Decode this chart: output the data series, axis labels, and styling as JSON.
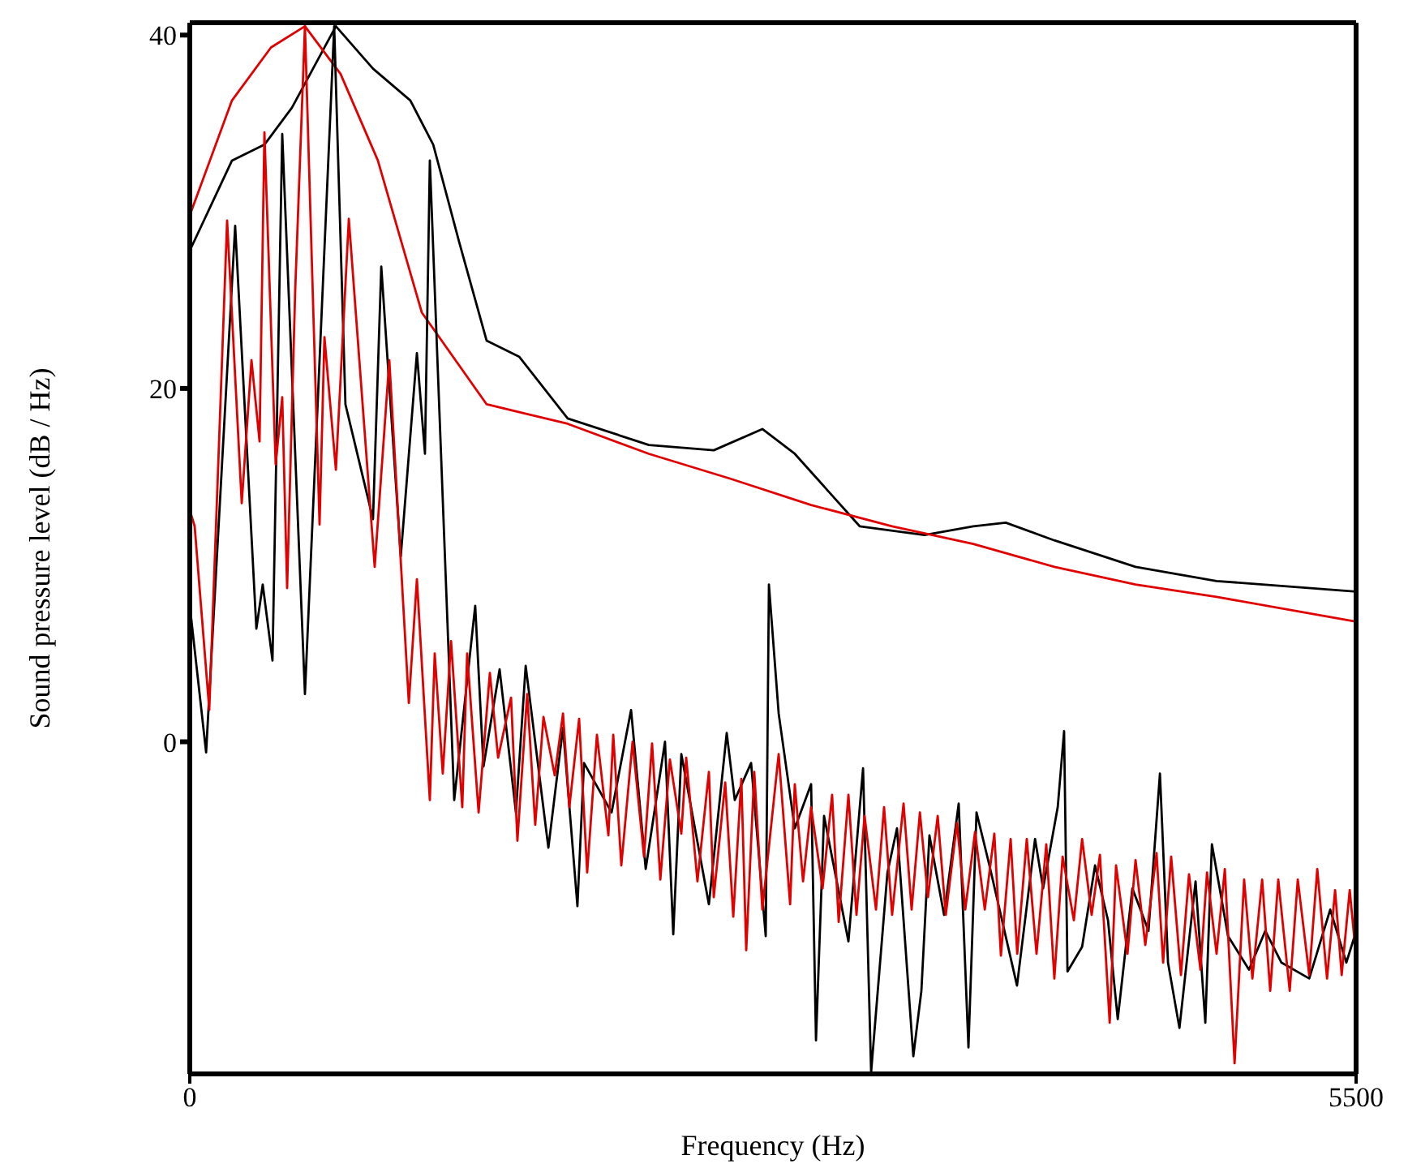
{
  "chart_data": {
    "type": "line",
    "xlabel": "Frequency (Hz)",
    "ylabel": "Sound pressure level (dB / Hz)",
    "xlim": [
      0,
      5500
    ],
    "xticks": [
      0,
      5500
    ],
    "ylim": [
      -18.8,
      40.7
    ],
    "yticks": [
      0,
      20,
      40
    ],
    "grid": false,
    "legend": false,
    "marker": "none",
    "line_style": "solid",
    "series": [
      {
        "color": "#000000",
        "x": [
          0,
          199,
          352,
          482,
          689,
          864,
          1040,
          1148,
          1270,
          1400,
          1553,
          1782,
          2165,
          2471,
          2700,
          2853,
          3159,
          3465,
          3695,
          3848,
          4077,
          4460,
          4842,
          5500
        ],
        "values": [
          27.8,
          32.9,
          33.8,
          35.9,
          40.5,
          38.1,
          36.3,
          33.8,
          28.3,
          22.7,
          21.8,
          18.3,
          16.8,
          16.5,
          17.7,
          16.3,
          12.2,
          11.7,
          12.2,
          12.4,
          11.4,
          9.9,
          9.1,
          8.5
        ]
      },
      {
        "color": "#e00000",
        "x": [
          0,
          199,
          383,
          543,
          711,
          887,
          1094,
          1400,
          1782,
          2165,
          2547,
          2930,
          3312,
          3695,
          4077,
          4460,
          4842,
          5500
        ],
        "values": [
          29.8,
          36.3,
          39.3,
          40.5,
          37.8,
          32.9,
          24.3,
          19.1,
          18.0,
          16.3,
          14.9,
          13.4,
          12.2,
          11.2,
          9.9,
          8.9,
          8.2,
          6.8
        ]
      },
      {
        "color": "#000000",
        "x": [
          0,
          77,
          214,
          314,
          344,
          390,
          436,
          543,
          681,
          734,
          864,
          903,
          995,
          1071,
          1109,
          1132,
          1247,
          1346,
          1385,
          1461,
          1538,
          1584,
          1691,
          1760,
          1828,
          1859,
          1989,
          2081,
          2150,
          2241,
          2280,
          2318,
          2448,
          2532,
          2570,
          2647,
          2716,
          2731,
          2777,
          2853,
          2930,
          2953,
          2991,
          3106,
          3175,
          3213,
          3290,
          3335,
          3412,
          3450,
          3488,
          3557,
          3626,
          3672,
          3710,
          3771,
          3901,
          3986,
          4024,
          4093,
          4123,
          4139,
          4208,
          4269,
          4330,
          4376,
          4445,
          4521,
          4575,
          4613,
          4667,
          4743,
          4789,
          4820,
          4896,
          4995,
          5072,
          5148,
          5279,
          5378,
          5454,
          5493
        ],
        "values": [
          7.7,
          -0.6,
          29.2,
          6.4,
          8.9,
          4.6,
          34.4,
          2.7,
          40.5,
          19.1,
          12.6,
          26.9,
          10.5,
          22.0,
          16.3,
          32.9,
          -3.3,
          7.7,
          -1.4,
          4.1,
          -4.0,
          4.3,
          -6.0,
          0.8,
          -9.3,
          -1.2,
          -4.0,
          1.8,
          -7.2,
          0,
          -10.9,
          -0.7,
          -9.2,
          0.5,
          -3.3,
          -1.2,
          -11.0,
          8.9,
          1.6,
          -4.9,
          -2.4,
          -16.9,
          -4.2,
          -11.3,
          -1.5,
          -18.7,
          -7.4,
          -4.9,
          -17.8,
          -14.1,
          -5.3,
          -9.8,
          -3.5,
          -17.3,
          -4.0,
          -7.0,
          -13.8,
          -5.5,
          -8.3,
          -3.7,
          0.6,
          -13.0,
          -11.6,
          -7.0,
          -10.1,
          -15.7,
          -8.3,
          -10.7,
          -1.8,
          -12.5,
          -16.2,
          -7.9,
          -15.9,
          -5.8,
          -11.0,
          -12.9,
          -10.7,
          -12.5,
          -13.4,
          -9.5,
          -12.5,
          -11.0
        ]
      },
      {
        "color": "#e00000",
        "x": [
          0,
          23,
          92,
          176,
          245,
          291,
          329,
          352,
          405,
          436,
          459,
          497,
          543,
          612,
          635,
          689,
          750,
          872,
          941,
          1033,
          1071,
          1132,
          1155,
          1193,
          1232,
          1285,
          1308,
          1362,
          1415,
          1454,
          1515,
          1545,
          1591,
          1629,
          1668,
          1721,
          1760,
          1790,
          1836,
          1874,
          1920,
          1974,
          1997,
          2035,
          2088,
          2142,
          2180,
          2219,
          2264,
          2318,
          2341,
          2394,
          2448,
          2471,
          2525,
          2563,
          2601,
          2624,
          2662,
          2700,
          2777,
          2831,
          2853,
          2892,
          2930,
          2984,
          3029,
          3060,
          3106,
          3144,
          3182,
          3236,
          3274,
          3312,
          3366,
          3404,
          3443,
          3481,
          3527,
          3565,
          3618,
          3657,
          3703,
          3749,
          3794,
          3825,
          3871,
          3902,
          3947,
          3993,
          4039,
          4077,
          4116,
          4169,
          4208,
          4253,
          4292,
          4338,
          4368,
          4422,
          4460,
          4506,
          4559,
          4590,
          4628,
          4674,
          4712,
          4766,
          4797,
          4842,
          4881,
          4927,
          4972,
          5011,
          5057,
          5095,
          5133,
          5187,
          5225,
          5279,
          5317,
          5363,
          5401,
          5432,
          5470,
          5500
        ],
        "values": [
          13.1,
          12.2,
          1.8,
          29.5,
          13.5,
          21.6,
          17.0,
          34.5,
          15.7,
          19.5,
          8.7,
          25.5,
          40.5,
          12.3,
          22.9,
          15.4,
          29.6,
          9.9,
          21.6,
          2.2,
          9.2,
          -3.3,
          5.0,
          -1.8,
          5.7,
          -3.7,
          5.0,
          -4.0,
          3.9,
          -0.9,
          2.5,
          -5.6,
          2.7,
          -4.7,
          1.4,
          -1.9,
          1.6,
          -3.7,
          1.3,
          -7.4,
          0.4,
          -5.3,
          0.4,
          -7.0,
          0,
          -6.5,
          -0.1,
          -7.8,
          -1.0,
          -5.2,
          -0.9,
          -7.9,
          -1.7,
          -8.8,
          -2.3,
          -9.9,
          -2.1,
          -11.8,
          -1.7,
          -9.5,
          -0.7,
          -9.2,
          -2.4,
          -7.9,
          -3.7,
          -8.3,
          -3.0,
          -10.2,
          -3.0,
          -9.8,
          -4.2,
          -9.5,
          -3.7,
          -9.8,
          -3.5,
          -9.5,
          -4.0,
          -8.8,
          -4.2,
          -9.8,
          -4.6,
          -9.5,
          -5.1,
          -9.5,
          -5.2,
          -12.1,
          -5.5,
          -12.0,
          -5.5,
          -12.0,
          -5.8,
          -13.4,
          -6.5,
          -10.1,
          -5.5,
          -9.8,
          -6.4,
          -15.9,
          -7.0,
          -12.0,
          -6.7,
          -11.5,
          -6.3,
          -12.5,
          -6.5,
          -13.2,
          -7.5,
          -12.9,
          -7.4,
          -12.0,
          -7.2,
          -18.2,
          -7.8,
          -13.4,
          -7.8,
          -14.1,
          -7.8,
          -14.1,
          -7.8,
          -13.2,
          -7.2,
          -13.4,
          -8.4,
          -13.2,
          -8.4,
          -12.2
        ]
      }
    ]
  }
}
